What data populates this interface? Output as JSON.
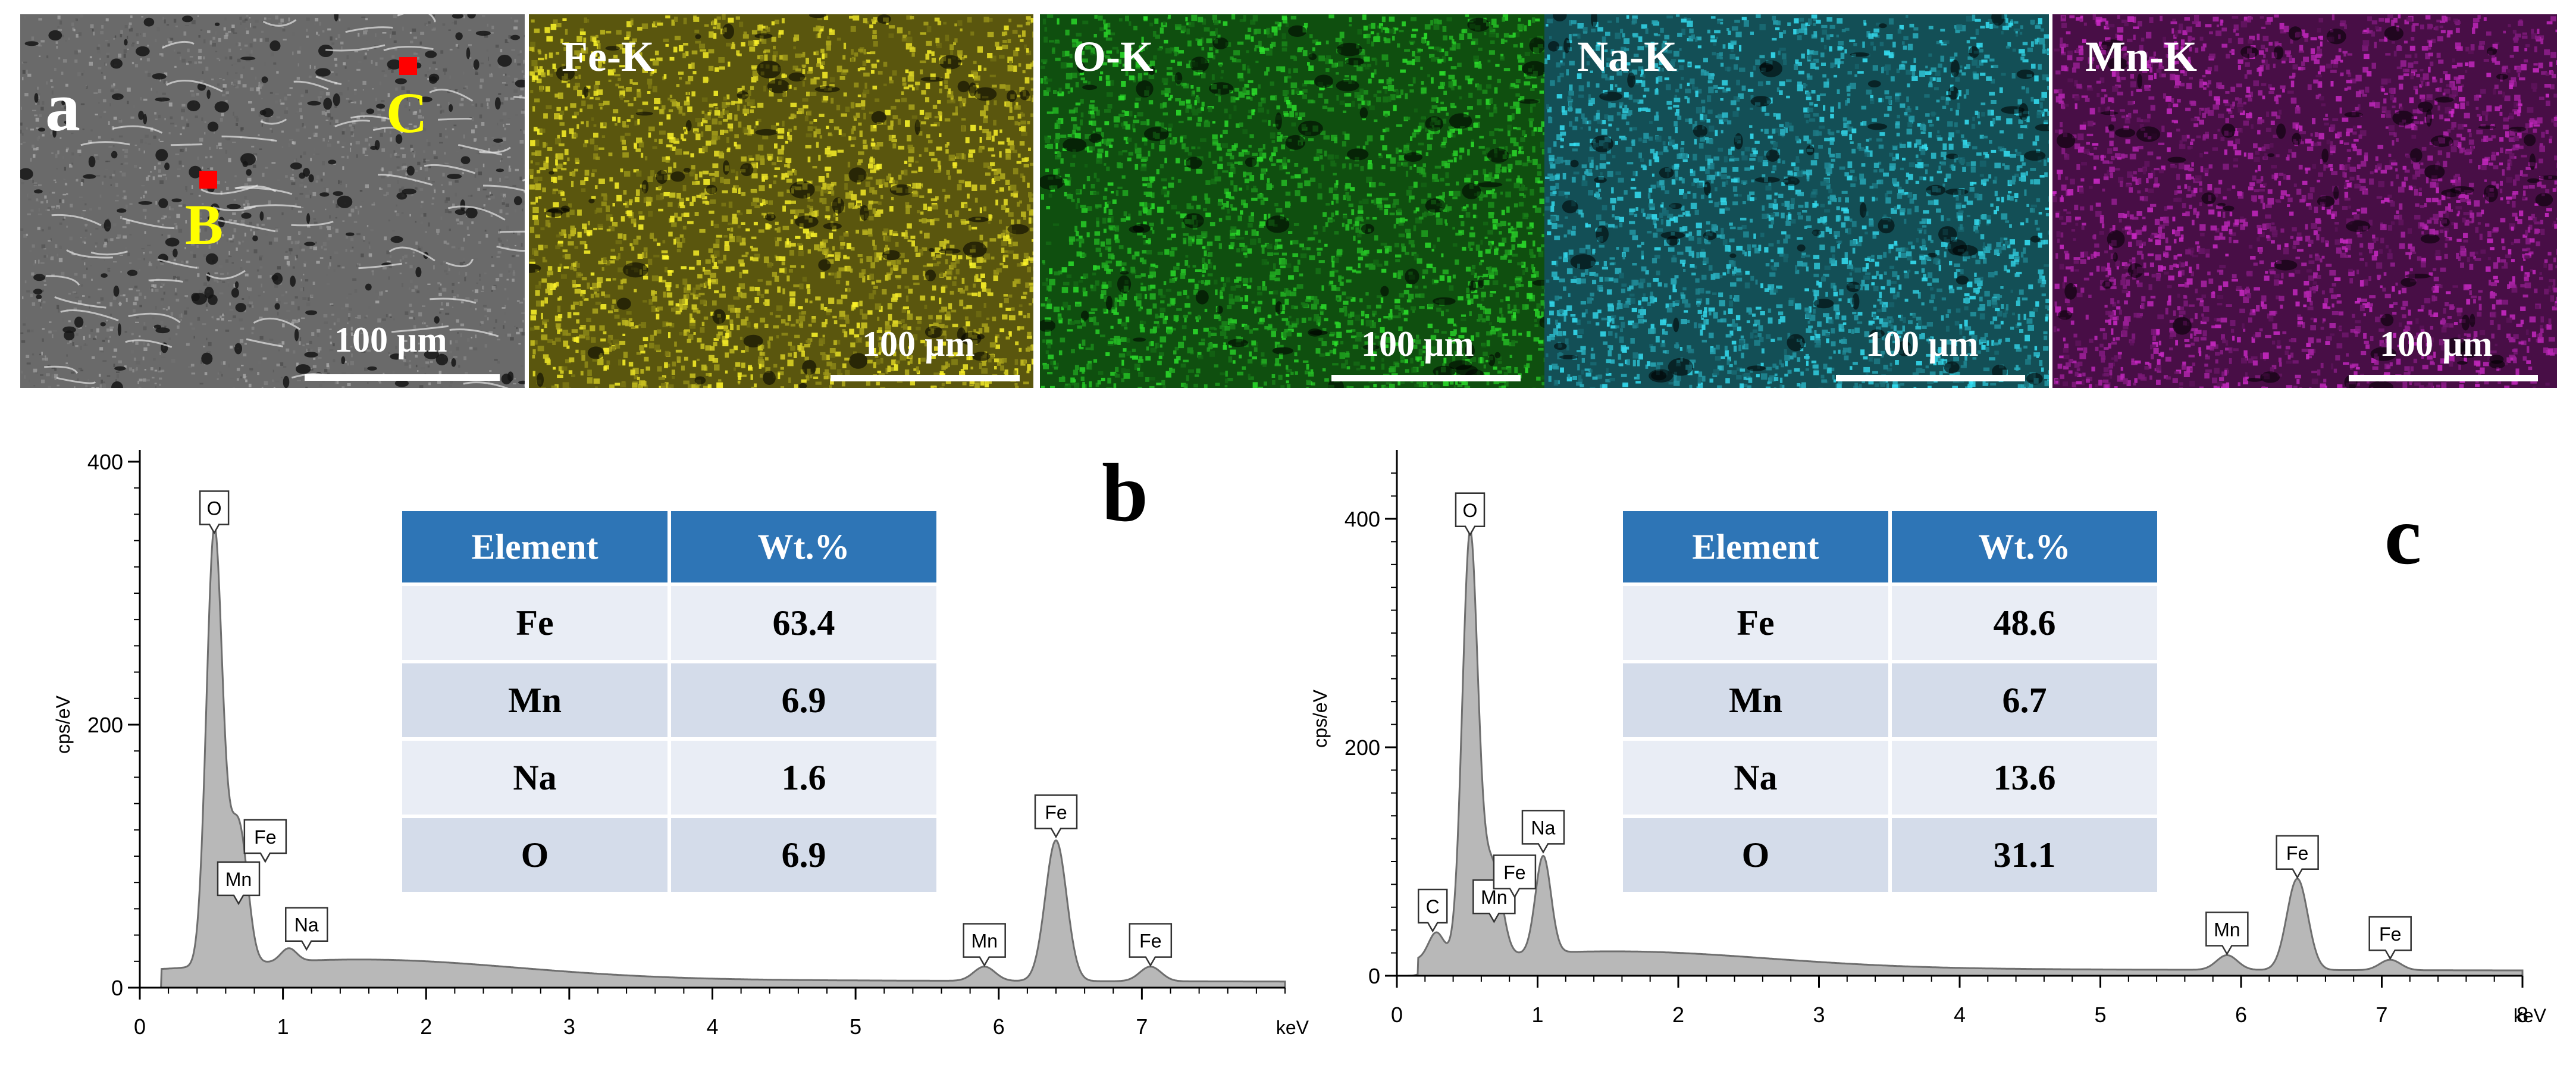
{
  "figure": {
    "panel_a": {
      "letter": "a",
      "points": [
        "B",
        "C"
      ],
      "maps": [
        {
          "label": "Fe-K",
          "color": "#c8c020"
        },
        {
          "label": "O-K",
          "color": "#22b022"
        },
        {
          "label": "Na-K",
          "color": "#2ab0c0"
        },
        {
          "label": "Mn-K",
          "color": "#a0209c"
        }
      ],
      "scale_bar": "100 µm"
    }
  },
  "chart_data": [
    {
      "type": "line",
      "panel": "b",
      "xlabel": "keV",
      "ylabel": "cps/eV",
      "xlim": [
        0,
        8
      ],
      "ylim": [
        0,
        400
      ],
      "xticks": [
        0,
        1,
        2,
        3,
        4,
        5,
        6,
        7
      ],
      "yticks": [
        0,
        200,
        400
      ],
      "peaks": [
        {
          "label": "O",
          "x": 0.52,
          "y": 345
        },
        {
          "label": "Fe",
          "x": 0.71,
          "y": 95
        },
        {
          "label": "Mn",
          "x": 0.64,
          "y": 72
        },
        {
          "label": "Na",
          "x": 1.04,
          "y": 30
        },
        {
          "label": "Mn",
          "x": 5.9,
          "y": 16
        },
        {
          "label": "Fe",
          "x": 6.4,
          "y": 112
        },
        {
          "label": "Fe",
          "x": 7.06,
          "y": 16
        }
      ],
      "table": {
        "headers": [
          "Element",
          "Wt.%"
        ],
        "rows": [
          [
            "Fe",
            "63.4"
          ],
          [
            "Mn",
            "6.9"
          ],
          [
            "Na",
            "1.6"
          ],
          [
            "O",
            "6.9"
          ]
        ]
      }
    },
    {
      "type": "line",
      "panel": "c",
      "xlabel": "keV",
      "ylabel": "cps/eV",
      "xlim": [
        0,
        8
      ],
      "ylim": [
        0,
        450
      ],
      "xticks": [
        0,
        1,
        2,
        3,
        4,
        5,
        6,
        7,
        8
      ],
      "yticks": [
        0,
        200,
        400
      ],
      "peaks": [
        {
          "label": "C",
          "x": 0.28,
          "y": 38
        },
        {
          "label": "O",
          "x": 0.52,
          "y": 385
        },
        {
          "label": "Mn",
          "x": 0.64,
          "y": 65
        },
        {
          "label": "Fe",
          "x": 0.71,
          "y": 68
        },
        {
          "label": "Na",
          "x": 1.04,
          "y": 105
        },
        {
          "label": "Mn",
          "x": 5.9,
          "y": 18
        },
        {
          "label": "Fe",
          "x": 6.4,
          "y": 85
        },
        {
          "label": "Fe",
          "x": 7.06,
          "y": 14
        }
      ],
      "table": {
        "headers": [
          "Element",
          "Wt.%"
        ],
        "rows": [
          [
            "Fe",
            "48.6"
          ],
          [
            "Mn",
            "6.7"
          ],
          [
            "Na",
            "13.6"
          ],
          [
            "O",
            "31.1"
          ]
        ]
      }
    }
  ]
}
